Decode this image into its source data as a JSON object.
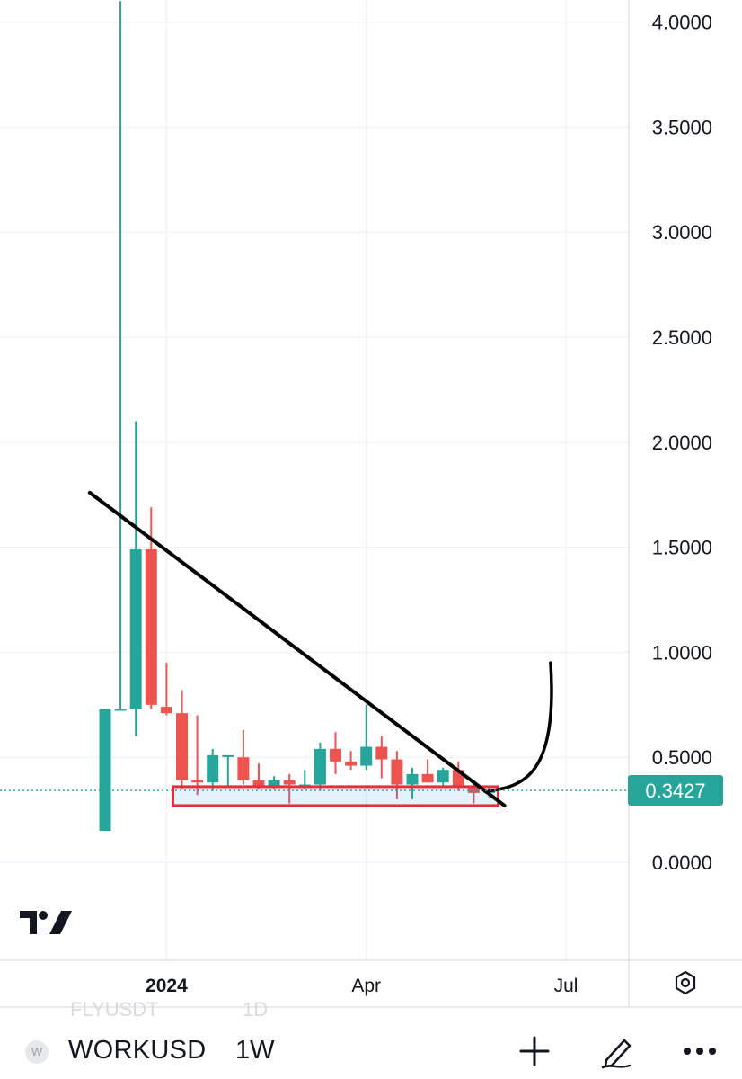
{
  "chart_data": {
    "type": "candlestick",
    "symbol": "WORKUSD",
    "interval": "1W",
    "y_ticks": [
      "4.0000",
      "3.5000",
      "3.0000",
      "2.5000",
      "2.0000",
      "1.5000",
      "1.0000",
      "0.5000",
      "0.0000"
    ],
    "x_ticks": [
      {
        "label": "2024",
        "bold": true
      },
      {
        "label": "Apr",
        "bold": false
      },
      {
        "label": "Jul",
        "bold": false
      }
    ],
    "ylim": [
      -0.45,
      4.1
    ],
    "last_price": "0.3427",
    "grid": true,
    "colors": {
      "up": "#26a69a",
      "down": "#ef5350",
      "grid": "#f0f3fa",
      "text": "#131722",
      "price_line": "#26a69a"
    },
    "candles": [
      {
        "week": "2023-12-04",
        "open": 0.15,
        "high": 0.73,
        "low": 0.15,
        "close": 0.73
      },
      {
        "week": "2023-12-11",
        "open": 0.73,
        "high": 4.1,
        "low": 0.73,
        "close": 0.73
      },
      {
        "week": "2023-12-18",
        "open": 0.73,
        "high": 2.1,
        "low": 0.6,
        "close": 1.49
      },
      {
        "week": "2023-12-25",
        "open": 1.49,
        "high": 1.69,
        "low": 0.73,
        "close": 0.75
      },
      {
        "week": "2024-01-01",
        "open": 0.74,
        "high": 0.95,
        "low": 0.7,
        "close": 0.71
      },
      {
        "week": "2024-01-08",
        "open": 0.71,
        "high": 0.82,
        "low": 0.35,
        "close": 0.39
      },
      {
        "week": "2024-01-15",
        "open": 0.39,
        "high": 0.7,
        "low": 0.32,
        "close": 0.38
      },
      {
        "week": "2024-01-22",
        "open": 0.38,
        "high": 0.54,
        "low": 0.34,
        "close": 0.51
      },
      {
        "week": "2024-01-29",
        "open": 0.51,
        "high": 0.51,
        "low": 0.36,
        "close": 0.51
      },
      {
        "week": "2024-02-05",
        "open": 0.5,
        "high": 0.63,
        "low": 0.37,
        "close": 0.39
      },
      {
        "week": "2024-02-12",
        "open": 0.39,
        "high": 0.47,
        "low": 0.35,
        "close": 0.36
      },
      {
        "week": "2024-02-19",
        "open": 0.36,
        "high": 0.41,
        "low": 0.35,
        "close": 0.39
      },
      {
        "week": "2024-02-26",
        "open": 0.39,
        "high": 0.42,
        "low": 0.28,
        "close": 0.37
      },
      {
        "week": "2024-03-04",
        "open": 0.37,
        "high": 0.44,
        "low": 0.35,
        "close": 0.37
      },
      {
        "week": "2024-03-11",
        "open": 0.37,
        "high": 0.57,
        "low": 0.34,
        "close": 0.54
      },
      {
        "week": "2024-03-18",
        "open": 0.54,
        "high": 0.62,
        "low": 0.42,
        "close": 0.48
      },
      {
        "week": "2024-03-25",
        "open": 0.48,
        "high": 0.53,
        "low": 0.44,
        "close": 0.46
      },
      {
        "week": "2024-04-01",
        "open": 0.46,
        "high": 0.75,
        "low": 0.44,
        "close": 0.55
      },
      {
        "week": "2024-04-08",
        "open": 0.55,
        "high": 0.6,
        "low": 0.4,
        "close": 0.49
      },
      {
        "week": "2024-04-15",
        "open": 0.49,
        "high": 0.53,
        "low": 0.3,
        "close": 0.37
      },
      {
        "week": "2024-04-22",
        "open": 0.37,
        "high": 0.45,
        "low": 0.3,
        "close": 0.42
      },
      {
        "week": "2024-04-29",
        "open": 0.42,
        "high": 0.49,
        "low": 0.38,
        "close": 0.38
      },
      {
        "week": "2024-05-06",
        "open": 0.38,
        "high": 0.45,
        "low": 0.36,
        "close": 0.44
      },
      {
        "week": "2024-05-13",
        "open": 0.44,
        "high": 0.48,
        "low": 0.34,
        "close": 0.36
      },
      {
        "week": "2024-05-20",
        "open": 0.36,
        "high": 0.39,
        "low": 0.28,
        "close": 0.33
      },
      {
        "week": "2024-05-27",
        "open": 0.33,
        "high": 0.36,
        "low": 0.31,
        "close": 0.34
      }
    ],
    "annotations": {
      "trendline": {
        "from": {
          "week": "2023-11-27",
          "price": 1.76
        },
        "to": {
          "week": "2024-06-03",
          "price": 0.27
        }
      },
      "support_box": {
        "from": "2024-01-08",
        "to": "2024-05-27",
        "top": 0.36,
        "bottom": 0.27
      },
      "projection_curve": {
        "from": {
          "week": "2024-05-27",
          "price": 0.34
        },
        "to": {
          "week": "2024-06-24",
          "price": 0.95
        }
      }
    }
  },
  "toolbar": {
    "symbol": "WORKUSD",
    "interval": "1W",
    "ghost_symbol": "FLYUSDT",
    "ghost_interval": "1D",
    "icons": [
      "symbol-logo-icon",
      "plus-icon",
      "draw-pen-icon",
      "more-icon"
    ]
  },
  "watermark": "TradingView"
}
